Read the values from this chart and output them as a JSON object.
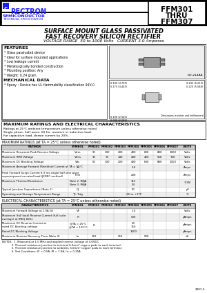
{
  "brand": "RECTRON",
  "brand_sub": "SEMICONDUCTOR",
  "brand_sub2": "TECHNICAL SPECIFICATION",
  "part_line1": "FFM301",
  "part_line2": "THRU",
  "part_line3": "FFM307",
  "title_line1": "SURFACE MOUNT GLASS PASSIVATED",
  "title_line2": "FAST RECOVERY SILICON RECTIFIER",
  "subtitle": "VOLTAGE RANGE  50 to 1000 Volts   CURRENT 3.0 Amperes",
  "features_title": "FEATURES",
  "features": [
    "* Glass passivated device",
    "* Ideal for surface mounted applications",
    "* Low leakage current",
    "* Metallurgically bonded construction",
    "* Mounting position: Any",
    "* Weight: 0.24 gram"
  ],
  "mech_title": "MECHANICAL DATA",
  "mech": "* Epoxy : Device has UL flammability classification 94V-0",
  "pkg_label": "DO-214AB",
  "mr_title": "MAXIMUM RATINGS AND ELECTRICAL CHARACTERISTICS",
  "mr_note1": "Ratings at 25°C ambient temperature unless otherwise noted.",
  "mr_note2": "Single phase, half wave, 60 Hz, resistive or inductive load.",
  "mr_note3": "For capacitive load, derate current by 20%.",
  "t1_title": "MAXIMUM RATINGS (at TA = 25°C unless otherwise noted)",
  "t1_cols": [
    "RATINGS",
    "SYMBOL",
    "FFM301",
    "FFM302",
    "FFM303",
    "FFM304",
    "FFM305",
    "FFM306",
    "FFM307",
    "UNITS"
  ],
  "t1_rows": [
    [
      "Maximum Recurrent Peak Reverse Voltage",
      "Vrrm",
      "50",
      "100",
      "200",
      "400",
      "600",
      "800",
      "1000",
      "Volts"
    ],
    [
      "Maximum RMS Voltage",
      "Vrms",
      "35",
      "70",
      "140",
      "280",
      "420",
      "560",
      "700",
      "Volts"
    ],
    [
      "Maximum DC Blocking Voltage",
      "Vdc",
      "50",
      "100",
      "200",
      "400",
      "600",
      "800",
      "1000",
      "Volts"
    ],
    [
      "Maximum Average Forward (Rectified) Current at TA = 55°C",
      "Io",
      "",
      "",
      "",
      "3.0",
      "",
      "",
      "",
      "Amps"
    ],
    [
      "Peak Forward Surge Current 8.3 ms single half sine wave\nsuperimposed on rated load (JEDEC method)",
      "Ifsm",
      "",
      "",
      "",
      "200",
      "",
      "",
      "",
      "Amps"
    ],
    [
      "Maximum Thermal Resistance",
      "Note 2, RθJA\nNote 3, RθJA",
      "",
      "",
      "",
      "115\n34",
      "",
      "",
      "",
      "°C/W"
    ],
    [
      "Typical Junction Capacitance (Note 1)",
      "CJ",
      "",
      "",
      "",
      "60",
      "",
      "",
      "",
      "pF"
    ],
    [
      "Operating and Storage Temperature Range",
      "TJ, Tstg",
      "",
      "",
      "",
      "-65 to +175",
      "",
      "",
      "",
      "°C"
    ]
  ],
  "t1_row_h": [
    7,
    7,
    7,
    9,
    12,
    12,
    7,
    7
  ],
  "t2_title": "ELECTRICAL CHARACTERISTICS (at TA = 25°C unless otherwise noted)",
  "t2_cols": [
    "CHARACTERISTICS",
    "SYMBOL",
    "FFM301",
    "FFM302",
    "FFM303",
    "FFM304",
    "FFM305",
    "FFM306",
    "FFM307",
    "UNITS"
  ],
  "t2_rows": [
    [
      "Maximum Forward Voltage at 1.0A (b)",
      "VF",
      "",
      "",
      "",
      "1.0",
      "",
      "",
      "",
      "Volts"
    ],
    [
      "Maximum (full load) Reverse Current (full cycle\naverage) at fREQ 60Hz",
      "IR",
      "",
      "",
      "",
      "500",
      "",
      "",
      "",
      "µAmps"
    ],
    [
      "Maximum DC Reverse Current at\nrated DC blocking voltage",
      "@TA = 25°C\n@TA = 125°C",
      "IR",
      "",
      "",
      "10\n150",
      "",
      "",
      "",
      "µAmps"
    ],
    [
      "Rated DC Blocking Voltage",
      "",
      "",
      "",
      "",
      "1000",
      "",
      "",
      "",
      "µAmps"
    ],
    [
      "Maximum Reverse Recovery Time (Note 4)",
      "trr",
      "150",
      "",
      "250",
      "",
      "500",
      "",
      "",
      "nS"
    ]
  ],
  "t2_row_h": [
    7,
    11,
    12,
    7,
    7
  ],
  "notes": [
    "NOTES:  1. Measured at 1.0 MHz and applied reverse voltage of 4.0VDC.",
    "           2. Thermal resistance junction to terminal 6.0mm² copper pads to each terminal.",
    "           3. Thermal resistance junction to ambient, 6.0mm² copper pads to each terminal.",
    "           4. Test Conditions: IF = 0.5A, IR = 1.0A, Irr = 0.25A."
  ],
  "doc_num": "2001-5",
  "blue": "#1a1aff",
  "black": "#000000",
  "white": "#ffffff",
  "lgray": "#eeeeee",
  "mgray": "#bbbbbb",
  "dgray": "#888888",
  "hdr_bg": "#cccccc"
}
